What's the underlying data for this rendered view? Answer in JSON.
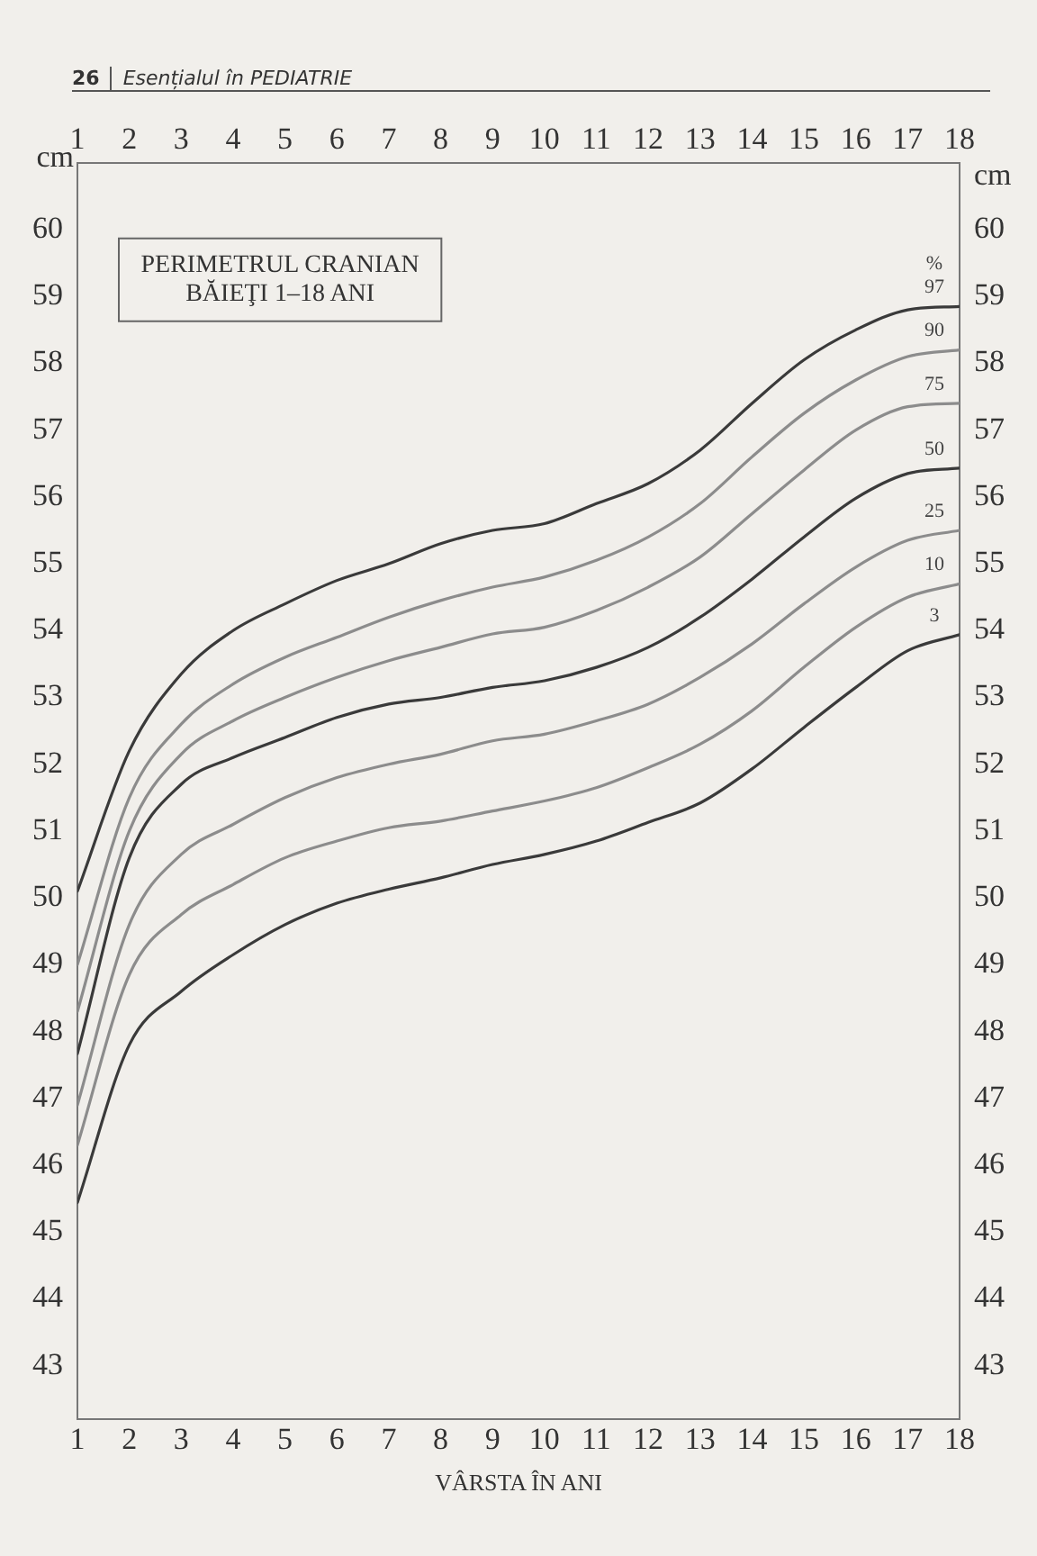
{
  "chart_data": {
    "type": "line",
    "title": "PERIMETRUL CRANIAN",
    "subtitle": "BĂIEŢI 1–18 ANI",
    "xlabel": "VÂRSTA ÎN ANI",
    "ylabel": "cm",
    "y2label": "cm",
    "legend_title": "%",
    "annotations": [
      "26",
      "Esențialul în PEDIATRIE"
    ],
    "x": [
      1,
      2,
      3,
      4,
      5,
      6,
      7,
      8,
      9,
      10,
      11,
      12,
      13,
      14,
      15,
      16,
      17,
      18
    ],
    "series": [
      {
        "name": "97",
        "color": "#3a3a3a",
        "values": [
          50.1,
          52.2,
          53.35,
          54.0,
          54.4,
          54.75,
          55.0,
          55.3,
          55.5,
          55.6,
          55.9,
          56.2,
          56.7,
          57.4,
          58.05,
          58.5,
          58.8,
          58.85
        ]
      },
      {
        "name": "90",
        "color": "#8c8c8c",
        "values": [
          49.0,
          51.5,
          52.6,
          53.2,
          53.6,
          53.9,
          54.2,
          54.45,
          54.65,
          54.8,
          55.05,
          55.4,
          55.9,
          56.6,
          57.25,
          57.75,
          58.1,
          58.2
        ]
      },
      {
        "name": "75",
        "color": "#8c8c8c",
        "values": [
          48.3,
          51.0,
          52.15,
          52.65,
          53.0,
          53.3,
          53.55,
          53.75,
          53.95,
          54.05,
          54.3,
          54.65,
          55.1,
          55.75,
          56.4,
          57.0,
          57.35,
          57.4
        ]
      },
      {
        "name": "50",
        "color": "#3a3a3a",
        "values": [
          47.67,
          50.6,
          51.7,
          52.1,
          52.4,
          52.7,
          52.9,
          53.0,
          53.15,
          53.25,
          53.45,
          53.75,
          54.2,
          54.77,
          55.4,
          55.98,
          56.35,
          56.43
        ]
      },
      {
        "name": "25",
        "color": "#8c8c8c",
        "values": [
          46.9,
          49.6,
          50.65,
          51.1,
          51.5,
          51.8,
          52.0,
          52.15,
          52.35,
          52.45,
          52.65,
          52.9,
          53.3,
          53.8,
          54.4,
          54.95,
          55.35,
          55.5
        ]
      },
      {
        "name": "10",
        "color": "#8c8c8c",
        "values": [
          46.3,
          48.85,
          49.75,
          50.2,
          50.6,
          50.85,
          51.05,
          51.15,
          51.3,
          51.45,
          51.65,
          51.95,
          52.3,
          52.8,
          53.45,
          54.05,
          54.5,
          54.7
        ]
      },
      {
        "name": "3",
        "color": "#3a3a3a",
        "values": [
          45.44,
          47.8,
          48.6,
          49.15,
          49.6,
          49.92,
          50.13,
          50.3,
          50.5,
          50.65,
          50.85,
          51.13,
          51.42,
          51.93,
          52.55,
          53.15,
          53.7,
          53.94
        ]
      }
    ],
    "xlim": [
      1,
      18
    ],
    "xticks": [
      1,
      2,
      3,
      4,
      5,
      6,
      7,
      8,
      9,
      10,
      11,
      12,
      13,
      14,
      15,
      16,
      17,
      18
    ],
    "x2lim": [
      1,
      18
    ],
    "x2ticks": [
      1,
      2,
      3,
      4,
      5,
      6,
      7,
      8,
      9,
      10,
      11,
      12,
      13,
      14,
      15,
      16,
      17,
      18
    ],
    "ylim": [
      42.2,
      61
    ],
    "yticks": [
      43,
      44,
      45,
      46,
      47,
      48,
      49,
      50,
      51,
      52,
      53,
      54,
      55,
      56,
      57,
      58,
      59,
      60
    ],
    "y2lim": [
      42.2,
      61
    ],
    "y2ticks": [
      43,
      44,
      45,
      46,
      47,
      48,
      49,
      50,
      51,
      52,
      53,
      54,
      55,
      56,
      57,
      58,
      59,
      60
    ],
    "grid": false,
    "legend": false,
    "marker": "none",
    "line_style": "solid"
  }
}
